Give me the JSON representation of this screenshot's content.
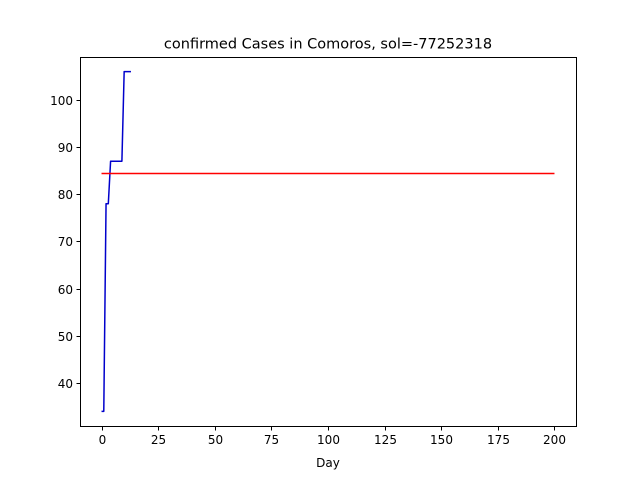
{
  "chart_data": {
    "type": "line",
    "title": "confirmed Cases in Comoros, sol=-77252318",
    "xlabel": "Day",
    "ylabel": "",
    "xlim": [
      -9.5,
      209.5
    ],
    "ylim": [
      30.9,
      109.1
    ],
    "xticks": [
      0,
      25,
      50,
      75,
      100,
      125,
      150,
      175,
      200
    ],
    "yticks": [
      40,
      50,
      60,
      70,
      80,
      90,
      100
    ],
    "grid": false,
    "legend": "none",
    "series": [
      {
        "color": "#0000cc",
        "x": [
          0,
          1,
          2,
          3,
          4,
          5,
          6,
          7,
          8,
          9,
          10,
          11,
          12,
          13
        ],
        "y": [
          34,
          34,
          78,
          78,
          87,
          87,
          87,
          87,
          87,
          87,
          106,
          106,
          106,
          106
        ]
      },
      {
        "color": "#ff0000",
        "x": [
          0,
          200
        ],
        "y": [
          84.4,
          84.4
        ]
      }
    ]
  }
}
